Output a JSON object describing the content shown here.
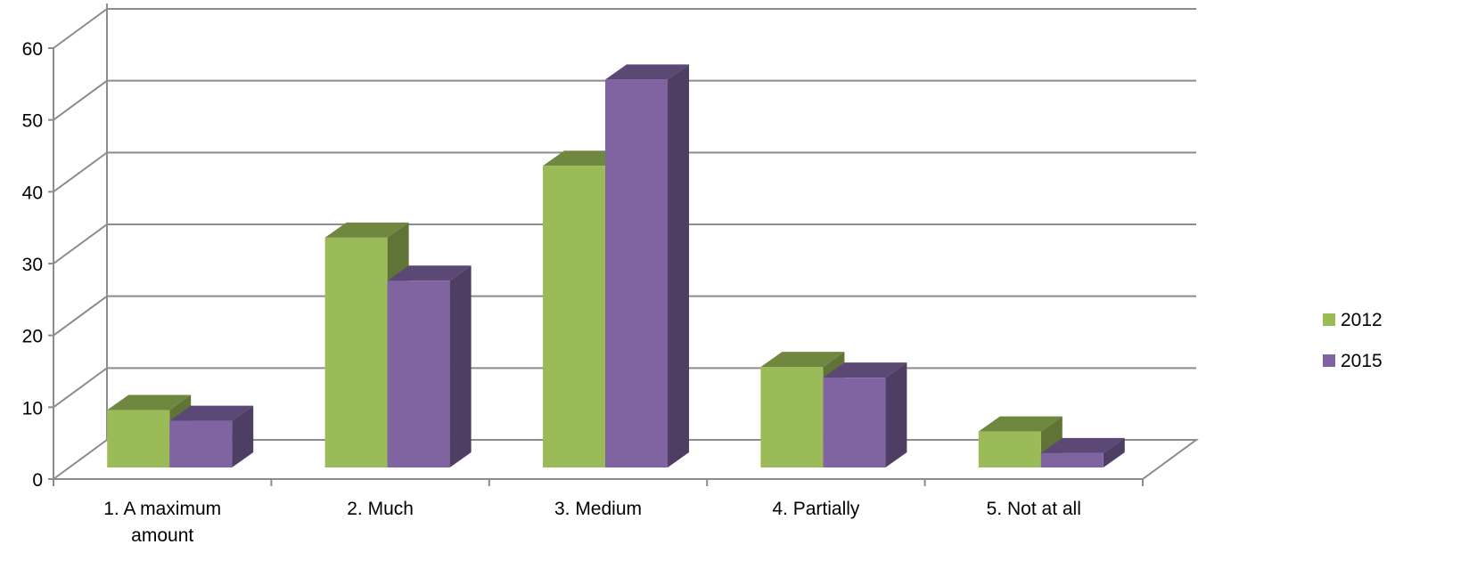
{
  "chart_data": {
    "type": "bar",
    "style": "3d-clustered-column",
    "categories": [
      "1. A maximum amount",
      "2. Much",
      "3. Medium",
      "4. Partially",
      "5. Not at all"
    ],
    "series": [
      {
        "name": "2012",
        "values": [
          8,
          32,
          42,
          14,
          5
        ],
        "color": "#9BBB59"
      },
      {
        "name": "2015",
        "values": [
          6.5,
          26,
          54,
          12.5,
          2
        ],
        "color": "#8064A2"
      }
    ],
    "yticks": [
      "0",
      "10",
      "20",
      "30",
      "40",
      "50",
      "60"
    ],
    "ylim": [
      0,
      60
    ],
    "grid": true,
    "legend_position": "right",
    "title": "",
    "xlabel": "",
    "ylabel": ""
  }
}
